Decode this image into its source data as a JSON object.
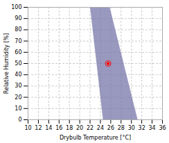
{
  "chart_data": {
    "type": "scatter",
    "xlabel": "Drybulb Temperature [°C]",
    "ylabel": "Relative Humidity [%]",
    "xlim": [
      10,
      36
    ],
    "ylim": [
      0,
      100
    ],
    "xticks": [
      10,
      12,
      14,
      16,
      18,
      20,
      22,
      24,
      26,
      28,
      30,
      32,
      34,
      36
    ],
    "yticks": [
      0,
      10,
      20,
      30,
      40,
      50,
      60,
      70,
      80,
      90,
      100
    ],
    "grid": true,
    "series": [
      {
        "type": "polygon",
        "color": "#7777aa",
        "x": [
          22.0,
          25.8,
          31.2,
          24.5
        ],
        "values": [
          100,
          100,
          0,
          0
        ]
      },
      {
        "type": "scatter",
        "color": "red",
        "marker": "circle",
        "x": [
          25.5
        ],
        "values": [
          50
        ]
      }
    ]
  }
}
